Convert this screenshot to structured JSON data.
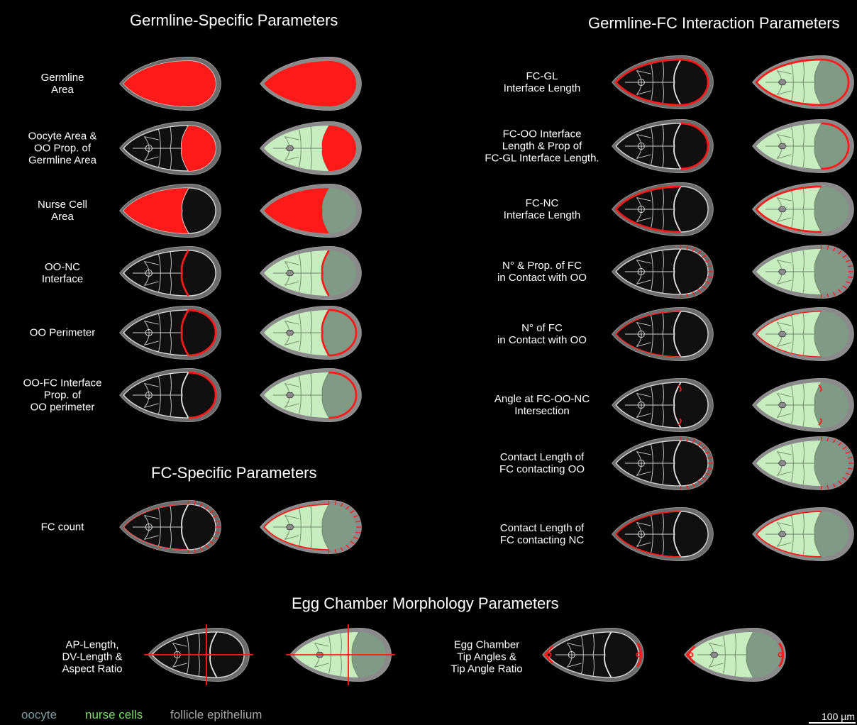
{
  "sections": {
    "germline_specific": "Germline-Specific Parameters",
    "germline_fc_interaction": "Germline-FC Interaction Parameters",
    "fc_specific": "FC-Specific Parameters",
    "egg_chamber_morphology": "Egg Chamber Morphology Parameters"
  },
  "germline_rows": [
    {
      "label": "Germline\nArea",
      "variant": "germline-area"
    },
    {
      "label": "Oocyte Area &\nOO Prop. of\nGermline Area",
      "variant": "oocyte-area"
    },
    {
      "label": "Nurse Cell\nArea",
      "variant": "nc-area"
    },
    {
      "label": "OO-NC\nInterface",
      "variant": "oo-nc"
    },
    {
      "label": "OO Perimeter",
      "variant": "oo-perim"
    },
    {
      "label": "OO-FC Interface\nProp. of\nOO perimeter",
      "variant": "oo-fc"
    }
  ],
  "fc_rows": [
    {
      "label": "FC count",
      "variant": "fc-count"
    }
  ],
  "interaction_rows": [
    {
      "label": "FC-GL\nInterface Length",
      "variant": "fc-gl"
    },
    {
      "label": "FC-OO Interface\nLength & Prop of\nFC-GL Interface Length.",
      "variant": "fc-oo"
    },
    {
      "label": "FC-NC\nInterface Length",
      "variant": "fc-nc"
    },
    {
      "label": "N° & Prop. of FC\nin Contact with OO",
      "variant": "n-fc-oo"
    },
    {
      "label": "N° of FC\nin Contact with OO",
      "variant": "n-fc"
    },
    {
      "label": "Angle at FC-OO-NC\nIntersection",
      "variant": "angle"
    },
    {
      "label": "Contact Length of\nFC contacting OO",
      "variant": "cl-oo"
    },
    {
      "label": "Contact Length of\nFC contacting NC",
      "variant": "cl-nc"
    }
  ],
  "morphology_rows": [
    {
      "label": "AP-Length,\nDV-Length &\nAspect Ratio",
      "variant": "ap-dv"
    },
    {
      "label": "Egg Chamber\nTip Angles &\nTip Angle Ratio",
      "variant": "tips"
    }
  ],
  "legend": [
    {
      "label": "oocyte",
      "color": "#7d9ca3"
    },
    {
      "label": "nurse cells",
      "color": "#7ddc6e"
    },
    {
      "label": "follicle epithelium",
      "color": "#a6a6a6"
    }
  ],
  "scale_bar": {
    "label": "100 µm"
  },
  "colors": {
    "background": "#000000",
    "highlight": "#ff1a1a",
    "nurse_cells_fill": "#c6ecc0",
    "oocyte_fill": "#7f9a85",
    "follicle_fill": "#8a8a8a",
    "nucleus_fill": "#8a8a8a"
  }
}
